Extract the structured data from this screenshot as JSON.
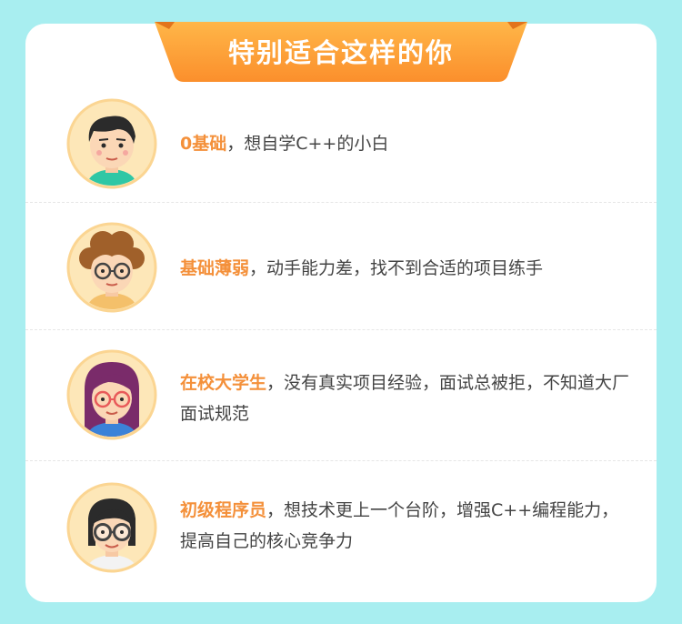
{
  "title": "特别适合这样的你",
  "colors": {
    "accent": "#f4903a",
    "banner": "#fb9a36",
    "background": "#a8eef0",
    "card": "#ffffff"
  },
  "items": [
    {
      "highlight": "0基础",
      "rest": "，想自学C++的小白",
      "avatar": "boy-avatar-icon"
    },
    {
      "highlight": "基础薄弱",
      "rest": "，动手能力差，找不到合适的项目练手",
      "avatar": "curly-hair-glasses-avatar-icon"
    },
    {
      "highlight": "在校大学生",
      "rest": "，没有真实项目经验，面试总被拒，不知道大厂面试规范",
      "avatar": "girl-glasses-avatar-icon"
    },
    {
      "highlight": "初级程序员",
      "rest": "，想技术更上一个台阶，增强C++编程能力，提高自己的核心竞争力",
      "avatar": "programmer-glasses-avatar-icon"
    }
  ]
}
